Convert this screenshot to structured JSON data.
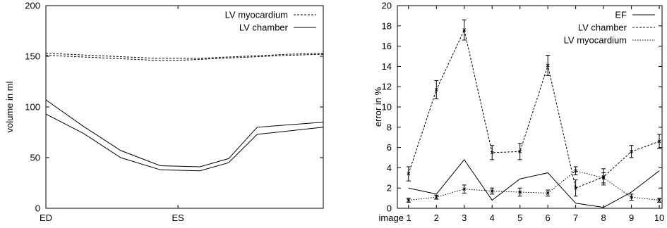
{
  "chart_data": [
    {
      "type": "line",
      "ylabel": "volume in ml",
      "xlabel": "",
      "ylim": [
        0,
        200
      ],
      "yticks": [
        0,
        50,
        100,
        150,
        200
      ],
      "xticks": [
        {
          "label": "ED",
          "x": 0
        },
        {
          "label": "ES",
          "x": 6
        }
      ],
      "xlim": [
        0,
        12.6
      ],
      "legend": "top-right",
      "series": [
        {
          "name": "LV myocardium",
          "style": "dashed",
          "bands": [
            {
              "x": [
                0,
                1,
                2,
                3,
                4,
                5,
                6,
                7,
                8,
                9,
                10,
                11,
                12.6
              ],
              "y": [
                153,
                152,
                151,
                150,
                149,
                148,
                148,
                148,
                149,
                150,
                151,
                152,
                153
              ]
            },
            {
              "x": [
                0,
                1,
                2,
                3,
                4,
                5,
                6,
                7,
                8,
                9,
                10,
                11,
                12.6
              ],
              "y": [
                151,
                150,
                149,
                148,
                147,
                146,
                146,
                147,
                148,
                149,
                150,
                151,
                152
              ]
            }
          ]
        },
        {
          "name": "LV chamber",
          "style": "solid",
          "bands": [
            {
              "x": [
                0,
                1.7,
                3.4,
                5.2,
                7,
                8.3,
                9.6,
                12.6
              ],
              "y": [
                107,
                81,
                57,
                42,
                41,
                49,
                80,
                85
              ]
            },
            {
              "x": [
                0,
                1.7,
                3.4,
                5.2,
                7,
                8.3,
                9.6,
                12.6
              ],
              "y": [
                93,
                74,
                50,
                38,
                37,
                45,
                73,
                80
              ]
            }
          ]
        }
      ]
    },
    {
      "type": "line",
      "ylabel": "error in %",
      "xlabel": "",
      "ylim": [
        0,
        20
      ],
      "yticks": [
        0,
        2,
        4,
        6,
        8,
        10,
        12,
        14,
        16,
        18,
        20
      ],
      "xlim": [
        0.6,
        10.1
      ],
      "categories": [
        "image 1",
        "2",
        "3",
        "4",
        "5",
        "6",
        "7",
        "8",
        "9",
        "10"
      ],
      "legend": "top-right",
      "series": [
        {
          "name": "EF",
          "style": "solid",
          "values": [
            2.0,
            1.4,
            4.8,
            0.8,
            2.9,
            3.5,
            0.5,
            0.1,
            1.6,
            3.7
          ],
          "errors": null
        },
        {
          "name": "LV chamber",
          "style": "dashed",
          "values": [
            3.4,
            11.7,
            17.6,
            5.5,
            5.6,
            14.1,
            2.0,
            3.1,
            5.6,
            6.6
          ],
          "errors": [
            0.7,
            0.9,
            1.0,
            0.7,
            0.8,
            1.0,
            0.8,
            0.8,
            0.6,
            0.7
          ]
        },
        {
          "name": "LV myocardium",
          "style": "dotted",
          "values": [
            0.8,
            1.1,
            1.9,
            1.7,
            1.6,
            1.5,
            3.7,
            3.0,
            1.1,
            0.8
          ],
          "errors": [
            0.2,
            0.2,
            0.4,
            0.3,
            0.4,
            0.3,
            0.4,
            0.5,
            0.3,
            0.2
          ]
        }
      ]
    }
  ]
}
